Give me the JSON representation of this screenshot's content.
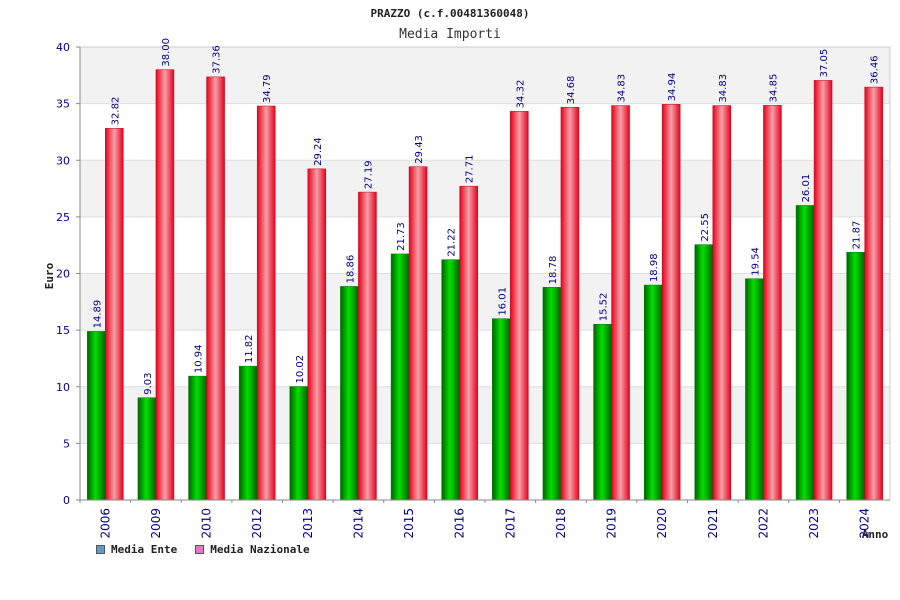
{
  "chart_data": {
    "type": "bar",
    "title": "PRAZZO (c.f.00481360048)",
    "subtitle": "Media Importi",
    "xlabel": "Anno",
    "ylabel": "Euro",
    "ylim": [
      0,
      40
    ],
    "yticks": [
      0,
      5,
      10,
      15,
      20,
      25,
      30,
      35,
      40
    ],
    "categories": [
      "2006",
      "2009",
      "2010",
      "2012",
      "2013",
      "2014",
      "2015",
      "2016",
      "2017",
      "2018",
      "2019",
      "2020",
      "2021",
      "2022",
      "2023",
      "2024"
    ],
    "series": [
      {
        "name": "Media Ente",
        "color": "#00c000",
        "values": [
          14.89,
          9.03,
          10.94,
          11.82,
          10.02,
          18.86,
          21.73,
          21.22,
          16.01,
          18.78,
          15.52,
          18.98,
          22.55,
          19.54,
          26.01,
          21.87
        ]
      },
      {
        "name": "Media Nazionale",
        "color": "#ff0000",
        "values": [
          32.82,
          38.0,
          37.36,
          34.79,
          29.24,
          27.19,
          29.43,
          27.71,
          34.32,
          34.68,
          34.83,
          34.94,
          34.83,
          34.85,
          37.05,
          36.46
        ]
      }
    ],
    "legend": [
      {
        "label": "Media Ente",
        "color": "#5b9bd5"
      },
      {
        "label": "Media Nazionale",
        "color": "#e07bbf"
      }
    ]
  }
}
